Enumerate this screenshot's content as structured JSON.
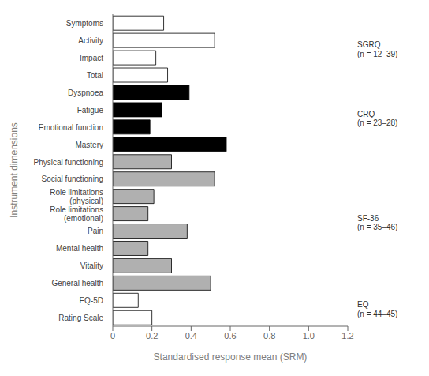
{
  "chart_data": {
    "type": "bar",
    "orientation": "horizontal",
    "categories": [
      "Symptoms",
      "Activity",
      "Impact",
      "Total",
      "Dyspnoea",
      "Fatigue",
      "Emotional function",
      "Mastery",
      "Physical functioning",
      "Social functioning",
      "Role limitations\n(physical)",
      "Role limitations\n(emotional)",
      "Pain",
      "Mental health",
      "Vitality",
      "General health",
      "EQ-5D",
      "Rating Scale"
    ],
    "values": [
      0.26,
      0.52,
      0.22,
      0.28,
      0.39,
      0.25,
      0.19,
      0.58,
      0.3,
      0.52,
      0.21,
      0.18,
      0.38,
      0.18,
      0.3,
      0.5,
      0.13,
      0.2
    ],
    "colors": [
      "#ffffff",
      "#ffffff",
      "#ffffff",
      "#ffffff",
      "#000000",
      "#000000",
      "#000000",
      "#000000",
      "#b0b0b0",
      "#b0b0b0",
      "#b0b0b0",
      "#b0b0b0",
      "#b0b0b0",
      "#b0b0b0",
      "#b0b0b0",
      "#b0b0b0",
      "#ffffff",
      "#ffffff"
    ],
    "xlabel": "Standardised response mean (SRM)",
    "ylabel": "Instrument dimensions",
    "xlim": [
      0,
      1.2
    ],
    "xticks": [
      0,
      0.2,
      0.4,
      0.6,
      0.8,
      {
        "value": 1.0,
        "label": "1.0"
      },
      1.2
    ],
    "annotations": [
      "SGRQ\n(n = 12–39)",
      "CRQ\n(n = 23–28)",
      "SF-36\n(n = 35–46)",
      "EQ\n(n = 44–45)"
    ],
    "grid": false
  }
}
